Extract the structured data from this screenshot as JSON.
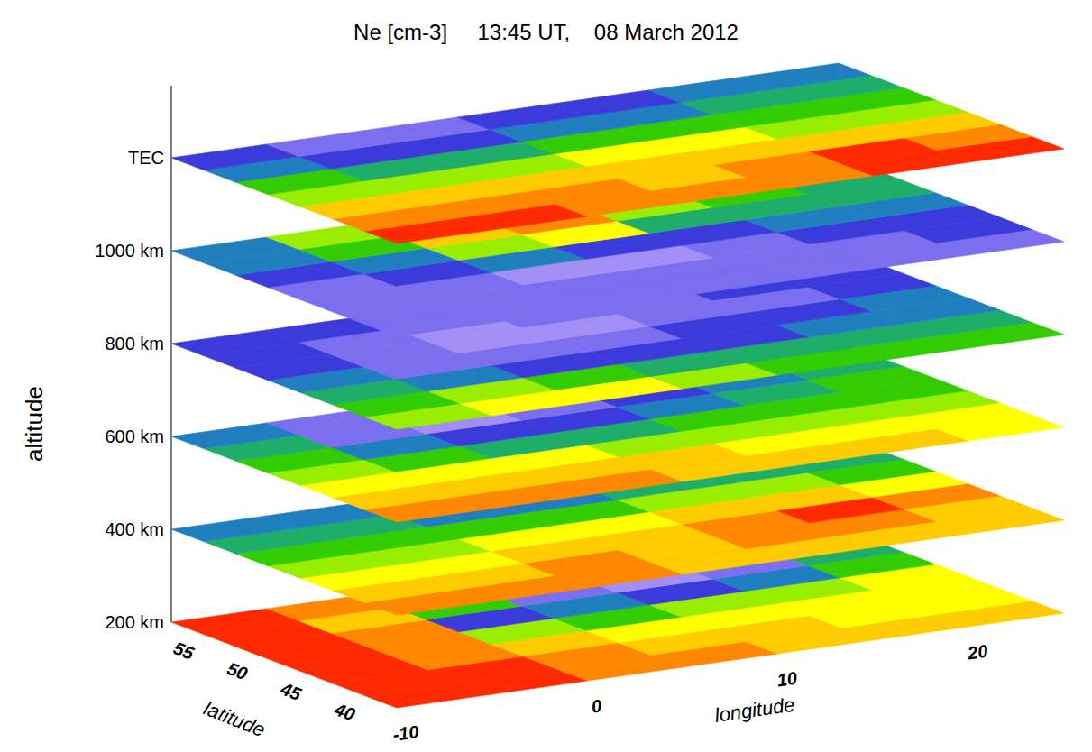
{
  "chart_data": {
    "type": "layered_contour",
    "title": "Ne [cm-3]     13:45 UT,    08 March 2012",
    "x_label": "longitude",
    "y_label": "latitude",
    "z_label": "altitude",
    "x": [
      -7.5,
      -2.5,
      2.5,
      7.5,
      12.5,
      17.5,
      22.5
    ],
    "y": [
      38.5,
      41.5,
      44.5,
      47.5,
      50.5,
      53.5,
      56.5
    ],
    "xlim": [
      -10,
      25
    ],
    "ylim": [
      37,
      58
    ],
    "xticks": [
      -10,
      0,
      10,
      20
    ],
    "yticks": [
      40,
      45,
      50,
      55
    ],
    "zlim": [
      0,
      10
    ],
    "colors": [
      "#a38ef5",
      "#7b6ff0",
      "#3b3bdc",
      "#1f7fbf",
      "#1fae6a",
      "#33cc00",
      "#99ee00",
      "#ffff00",
      "#ffcc00",
      "#ff8800",
      "#ff2a00"
    ],
    "layers": [
      {
        "label": "200 km",
        "cells": [
          [
            10,
            10,
            9,
            9,
            8,
            8,
            8
          ],
          [
            10,
            10,
            9,
            8,
            8,
            7,
            7
          ],
          [
            10,
            9,
            8,
            7,
            7,
            7,
            7
          ],
          [
            10,
            9,
            6,
            5,
            6,
            6,
            7
          ],
          [
            10,
            9,
            2,
            3,
            2,
            3,
            5
          ],
          [
            10,
            8,
            5,
            1,
            0,
            1,
            4
          ],
          [
            10,
            9,
            7,
            3,
            1,
            2,
            4
          ]
        ]
      },
      {
        "label": "400 km",
        "cells": [
          [
            9,
            9,
            9,
            8,
            8,
            8,
            8
          ],
          [
            8,
            8,
            9,
            8,
            9,
            9,
            8
          ],
          [
            7,
            7,
            8,
            8,
            9,
            10,
            9
          ],
          [
            6,
            6,
            7,
            7,
            8,
            8,
            7
          ],
          [
            5,
            5,
            5,
            5,
            6,
            6,
            5
          ],
          [
            4,
            4,
            3,
            3,
            4,
            4,
            4
          ],
          [
            3,
            3,
            2,
            2,
            2,
            3,
            3
          ]
        ]
      },
      {
        "label": "600 km",
        "cells": [
          [
            9,
            9,
            9,
            8,
            8,
            8,
            7
          ],
          [
            8,
            8,
            8,
            8,
            7,
            7,
            7
          ],
          [
            7,
            7,
            7,
            6,
            6,
            6,
            6
          ],
          [
            6,
            5,
            4,
            4,
            5,
            5,
            5
          ],
          [
            5,
            3,
            2,
            2,
            3,
            4,
            5
          ],
          [
            4,
            1,
            0,
            1,
            2,
            3,
            4
          ],
          [
            3,
            1,
            0,
            1,
            2,
            3,
            3
          ]
        ]
      },
      {
        "label": "800 km",
        "cells": [
          [
            6,
            7,
            7,
            6,
            5,
            5,
            5
          ],
          [
            5,
            6,
            5,
            4,
            4,
            4,
            4
          ],
          [
            4,
            3,
            2,
            2,
            2,
            3,
            3
          ],
          [
            3,
            1,
            1,
            1,
            2,
            2,
            3
          ],
          [
            2,
            1,
            0,
            0,
            1,
            1,
            2
          ],
          [
            2,
            1,
            0,
            1,
            1,
            2,
            2
          ],
          [
            2,
            2,
            1,
            1,
            2,
            2,
            3
          ]
        ]
      },
      {
        "label": "1000 km",
        "cells": [
          [
            1,
            1,
            1,
            1,
            1,
            1,
            1
          ],
          [
            1,
            1,
            1,
            1,
            1,
            1,
            2
          ],
          [
            1,
            1,
            0,
            0,
            1,
            2,
            2
          ],
          [
            1,
            2,
            3,
            2,
            2,
            3,
            3
          ],
          [
            2,
            3,
            6,
            7,
            4,
            4,
            4
          ],
          [
            3,
            5,
            8,
            9,
            6,
            5,
            4
          ],
          [
            3,
            6,
            8,
            10,
            7,
            5,
            3
          ]
        ]
      },
      {
        "label": "TEC",
        "cells": [
          [
            10,
            10,
            9,
            9,
            9,
            10,
            10
          ],
          [
            9,
            9,
            9,
            8,
            9,
            10,
            9
          ],
          [
            8,
            8,
            8,
            8,
            8,
            8,
            8
          ],
          [
            6,
            6,
            6,
            7,
            7,
            6,
            6
          ],
          [
            5,
            4,
            4,
            5,
            5,
            5,
            5
          ],
          [
            3,
            2,
            2,
            3,
            3,
            4,
            4
          ],
          [
            2,
            1,
            1,
            2,
            2,
            3,
            3
          ]
        ]
      }
    ]
  }
}
